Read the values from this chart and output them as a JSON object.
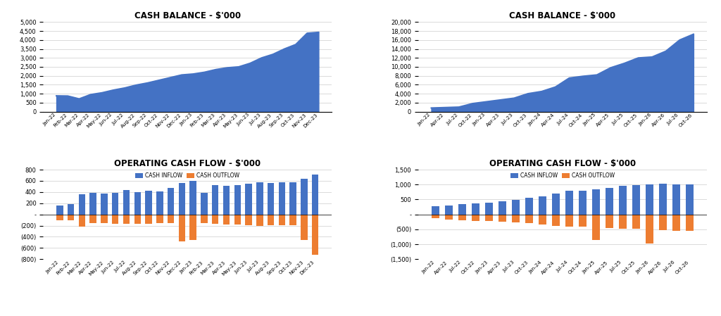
{
  "title_tl": "CASH BALANCE - $'000",
  "title_tr": "CASH BALANCE - $'000",
  "title_bl": "OPERATING CASH FLOW - $'000",
  "title_br": "OPERATING CASH FLOW - $'000",
  "fill_color": "#4472C4",
  "inflow_color": "#4472C4",
  "outflow_color": "#ED7D31",
  "bg_color": "#FFFFFF",
  "tl_labels": [
    "Jan-22",
    "Feb-22",
    "Mar-22",
    "Apr-22",
    "May-22",
    "Jun-22",
    "Jul-22",
    "Aug-22",
    "Sep-22",
    "Oct-22",
    "Nov-22",
    "Dec-22",
    "Jan-23",
    "Feb-23",
    "Mar-23",
    "Apr-23",
    "May-23",
    "Jun-23",
    "Jul-23",
    "Aug-23",
    "Sep-23",
    "Oct-23",
    "Nov-23",
    "Dec-23"
  ],
  "tl_values": [
    880,
    870,
    710,
    950,
    1050,
    1200,
    1320,
    1480,
    1600,
    1750,
    1900,
    2050,
    2100,
    2200,
    2350,
    2450,
    2500,
    2700,
    3000,
    3200,
    3500,
    3750,
    4380,
    4430
  ],
  "tr_labels": [
    "Jan-22",
    "Apr-22",
    "Jul-22",
    "Oct-22",
    "Jan-23",
    "Apr-23",
    "Jul-23",
    "Oct-23",
    "Jan-24",
    "Apr-24",
    "Jul-24",
    "Oct-24",
    "Jan-25",
    "Apr-25",
    "Jul-25",
    "Oct-25",
    "Jan-26",
    "Apr-26",
    "Jul-26",
    "Oct-26"
  ],
  "tr_values": [
    800,
    900,
    1000,
    1800,
    2200,
    2600,
    3000,
    4000,
    4500,
    5500,
    7500,
    7900,
    8200,
    9800,
    10800,
    12000,
    12200,
    13500,
    16000,
    17300
  ],
  "bl_labels": [
    "Jan-22",
    "Feb-22",
    "Mar-22",
    "Apr-22",
    "May-22",
    "Jun-22",
    "Jul-22",
    "Aug-22",
    "Sep-22",
    "Oct-22",
    "Nov-22",
    "Dec-22",
    "Jan-23",
    "Feb-23",
    "Mar-23",
    "Apr-23",
    "May-23",
    "Jun-23",
    "Jul-23",
    "Aug-23",
    "Sep-23",
    "Oct-23",
    "Nov-23",
    "Dec-23"
  ],
  "bl_inflow": [
    160,
    190,
    360,
    380,
    370,
    385,
    430,
    400,
    420,
    415,
    480,
    560,
    595,
    390,
    530,
    510,
    520,
    550,
    570,
    560,
    570,
    570,
    640,
    710
  ],
  "bl_outflow": [
    -100,
    -110,
    -215,
    -150,
    -160,
    -165,
    -165,
    -170,
    -170,
    -155,
    -155,
    -480,
    -455,
    -160,
    -165,
    -175,
    -175,
    -190,
    -200,
    -195,
    -195,
    -195,
    -460,
    -720
  ],
  "br_labels": [
    "Jan-22",
    "Apr-22",
    "Jul-22",
    "Oct-22",
    "Jan-23",
    "Apr-23",
    "Jul-23",
    "Oct-23",
    "Jan-24",
    "Apr-24",
    "Jul-24",
    "Oct-24",
    "Jan-25",
    "Apr-25",
    "Jul-25",
    "Oct-25",
    "Jan-26",
    "Apr-26",
    "Jul-26",
    "Oct-26"
  ],
  "br_inflow": [
    280,
    310,
    350,
    380,
    400,
    450,
    480,
    550,
    600,
    700,
    800,
    800,
    850,
    900,
    950,
    980,
    1000,
    1020,
    1000,
    1010
  ],
  "br_outflow": [
    -130,
    -180,
    -200,
    -210,
    -230,
    -250,
    -260,
    -300,
    -330,
    -380,
    -420,
    -420,
    -870,
    -450,
    -480,
    -490,
    -980,
    -520,
    -540,
    -550
  ],
  "tl_ylim": [
    0,
    5000
  ],
  "tl_yticks": [
    0,
    500,
    1000,
    1500,
    2000,
    2500,
    3000,
    3500,
    4000,
    4500,
    5000
  ],
  "tr_ylim": [
    0,
    20000
  ],
  "tr_yticks": [
    0,
    2000,
    4000,
    6000,
    8000,
    10000,
    12000,
    14000,
    16000,
    18000,
    20000
  ],
  "bl_ylim": [
    -800,
    800
  ],
  "bl_yticks": [
    -800,
    -600,
    -400,
    -200,
    0,
    200,
    400,
    600,
    800
  ],
  "br_ylim": [
    -1500,
    1500
  ],
  "br_yticks": [
    -1500,
    -1000,
    -500,
    0,
    500,
    1000,
    1500
  ]
}
